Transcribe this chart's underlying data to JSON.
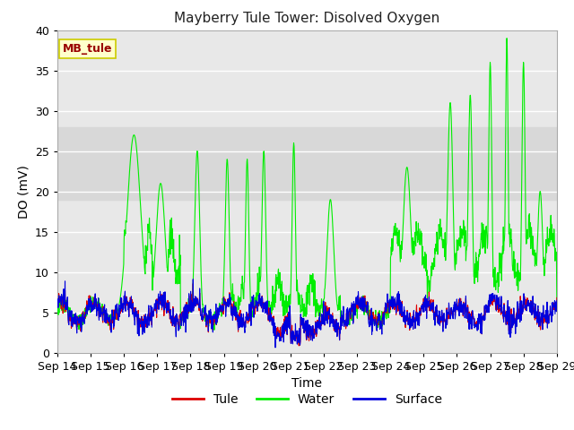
{
  "title": "Mayberry Tule Tower: Disolved Oxygen",
  "xlabel": "Time",
  "ylabel": "DO (mV)",
  "ylim": [
    0,
    40
  ],
  "plot_bg_color": "#e8e8e8",
  "fig_bg_color": "#ffffff",
  "annotation_text": "MB_tule",
  "annotation_bg": "#ffffcc",
  "annotation_fg": "#990000",
  "x_tick_labels": [
    "Sep 14",
    "Sep 15",
    "Sep 16",
    "Sep 17",
    "Sep 18",
    "Sep 19",
    "Sep 20",
    "Sep 21",
    "Sep 22",
    "Sep 23",
    "Sep 24",
    "Sep 25",
    "Sep 26",
    "Sep 27",
    "Sep 28",
    "Sep 29"
  ],
  "tule_color": "#dd0000",
  "water_color": "#00ee00",
  "surface_color": "#0000dd",
  "line_width": 0.8,
  "grid_color": "#ffffff",
  "shade_low": 19,
  "shade_high": 28,
  "shade_color": "#d8d8d8"
}
